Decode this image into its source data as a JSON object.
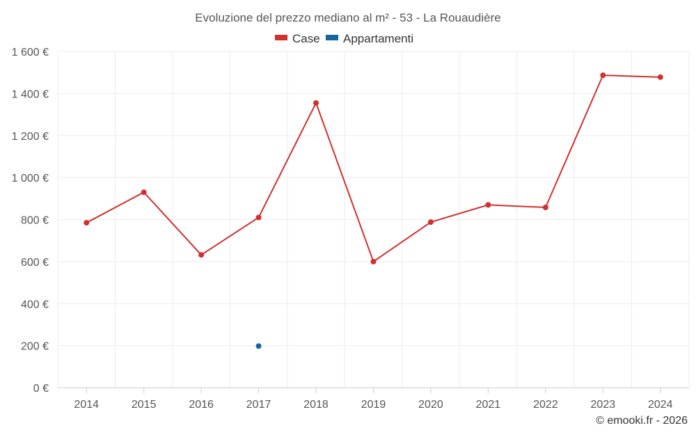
{
  "chart_data": {
    "type": "line",
    "title": "Evoluzione del prezzo mediano al m² - 53 - La Rouaudière",
    "categories": [
      "2014",
      "2015",
      "2016",
      "2017",
      "2018",
      "2019",
      "2020",
      "2021",
      "2022",
      "2023",
      "2024"
    ],
    "series": [
      {
        "name": "Case",
        "color": "#d32f2f",
        "values": [
          785,
          930,
          632,
          810,
          1355,
          600,
          788,
          870,
          858,
          1487,
          1478
        ]
      },
      {
        "name": "Appartamenti",
        "color": "#1565a0",
        "values": [
          null,
          null,
          null,
          198,
          null,
          null,
          null,
          null,
          null,
          null,
          null
        ]
      }
    ],
    "ylim": [
      0,
      1600
    ],
    "yticks": [
      0,
      200,
      400,
      600,
      800,
      1000,
      1200,
      1400,
      1600
    ],
    "ytick_labels": [
      "0 €",
      "200 €",
      "400 €",
      "600 €",
      "800 €",
      "1 000 €",
      "1 200 €",
      "1 400 €",
      "1 600 €"
    ],
    "xlabel": "",
    "ylabel": "",
    "grid": true,
    "legend_position": "top-center",
    "credit": "© emooki.fr - 2026"
  }
}
